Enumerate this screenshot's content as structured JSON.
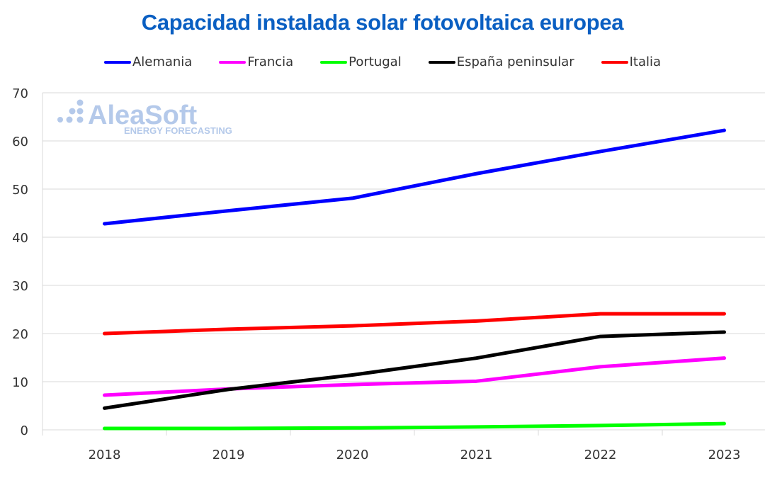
{
  "chart_data": {
    "type": "line",
    "title": "Capacidad instalada solar fotovoltaica europea",
    "xlabel": "",
    "ylabel": "",
    "categories": [
      "2018",
      "2019",
      "2020",
      "2021",
      "2022",
      "2023"
    ],
    "ylim": [
      0,
      70
    ],
    "yticks": [
      "0",
      "10",
      "20",
      "30",
      "40",
      "50",
      "60",
      "70"
    ],
    "grid": true,
    "legend_position": "top-center",
    "series": [
      {
        "name": "Alemania",
        "color": "#0000ff",
        "values": [
          42.8,
          45.5,
          48.1,
          53.2,
          57.8,
          62.2
        ]
      },
      {
        "name": "Francia",
        "color": "#ff00ff",
        "values": [
          7.2,
          8.5,
          9.4,
          10.1,
          13.1,
          14.9
        ]
      },
      {
        "name": "Portugal",
        "color": "#00ff00",
        "values": [
          0.3,
          0.3,
          0.4,
          0.6,
          0.9,
          1.3
        ]
      },
      {
        "name": "España peninsular",
        "color": "#000000",
        "values": [
          4.5,
          8.4,
          11.4,
          14.9,
          19.4,
          20.3
        ]
      },
      {
        "name": "Italia",
        "color": "#ff0000",
        "values": [
          20.0,
          20.9,
          21.6,
          22.6,
          24.1,
          24.1
        ]
      }
    ]
  },
  "watermark": {
    "brand": "AleaSoft",
    "tagline": "ENERGY FORECASTING"
  }
}
